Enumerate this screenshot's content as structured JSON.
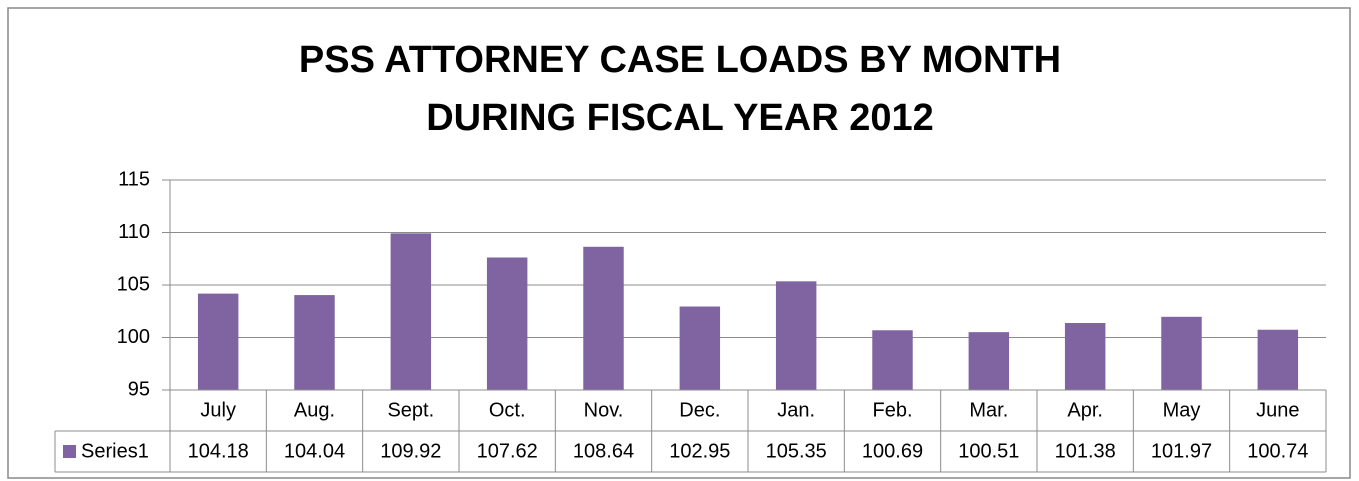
{
  "chart_data": {
    "type": "bar",
    "title": [
      "PSS ATTORNEY CASE LOADS BY MONTH",
      "DURING FISCAL YEAR 2012"
    ],
    "categories": [
      "July",
      "Aug.",
      "Sept.",
      "Oct.",
      "Nov.",
      "Dec.",
      "Jan.",
      "Feb.",
      "Mar.",
      "Apr.",
      "May",
      "June"
    ],
    "series": [
      {
        "name": "Series1",
        "color": "#8064a2",
        "values": [
          104.18,
          104.04,
          109.92,
          107.62,
          108.64,
          102.95,
          105.35,
          100.69,
          100.51,
          101.38,
          101.97,
          100.74
        ]
      }
    ],
    "ylim": [
      95,
      115
    ],
    "yticks": [
      95,
      100,
      105,
      110,
      115
    ],
    "grid": true,
    "data_table": true
  }
}
